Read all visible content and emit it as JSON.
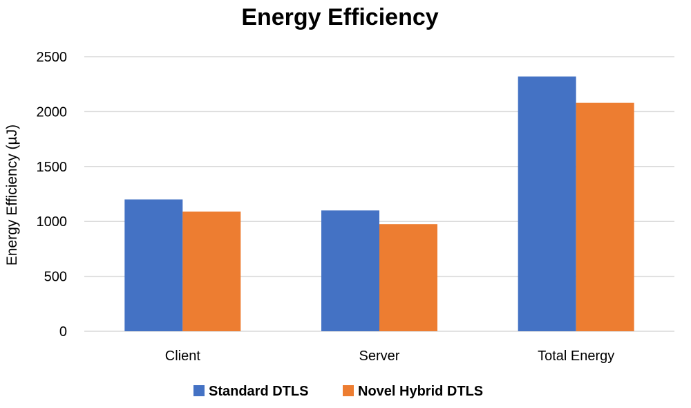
{
  "chart_data": {
    "type": "bar",
    "title": "Energy Efficiency",
    "xlabel": "",
    "ylabel": "Energy Efficiency (µJ)",
    "categories": [
      "Client",
      "Server",
      "Total Energy"
    ],
    "series": [
      {
        "name": "Standard DTLS",
        "values": [
          1200,
          1100,
          2320
        ],
        "color": "#4472C4"
      },
      {
        "name": "Novel Hybrid DTLS",
        "values": [
          1090,
          975,
          2080
        ],
        "color": "#ED7D31"
      }
    ],
    "ylim": [
      0,
      2500
    ],
    "yticks": [
      0,
      500,
      1000,
      1500,
      2000,
      2500
    ],
    "grid": true,
    "legend_position": "bottom"
  }
}
